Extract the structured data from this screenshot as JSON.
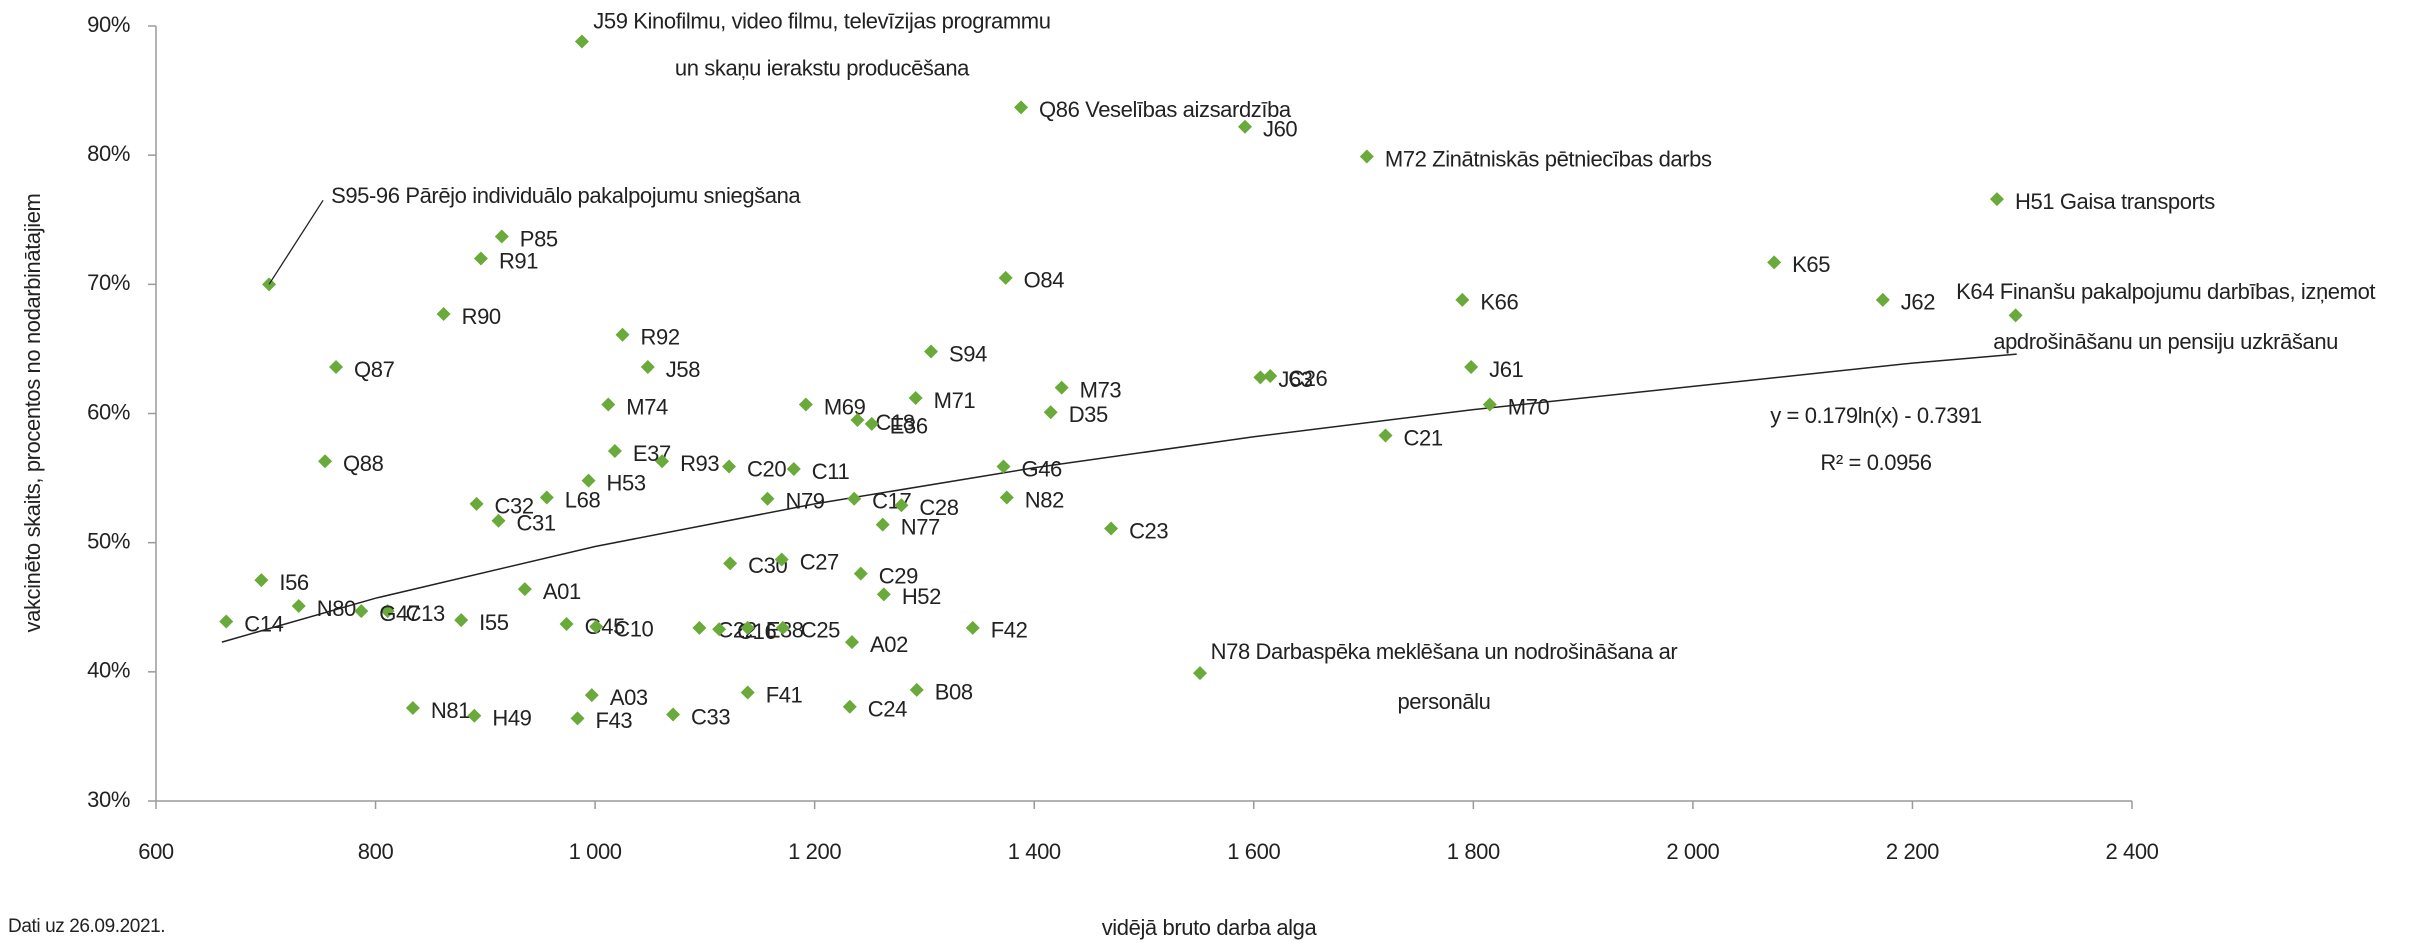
{
  "chart_data": {
    "type": "scatter",
    "x_label": "vidējā bruto darba alga",
    "y_label": "vakcinēto skaits, procentos no nodarbinātajiem",
    "note": "Dati uz 26.09.2021.",
    "color": "#6aaa3a",
    "xlim": [
      600,
      2400
    ],
    "xticks": [
      600,
      800,
      {
        "value": 1000,
        "label": "1 000"
      },
      {
        "value": 1200,
        "label": "1 200"
      },
      {
        "value": 1400,
        "label": "1 400"
      },
      {
        "value": 1600,
        "label": "1 600"
      },
      {
        "value": 1800,
        "label": "1 800"
      },
      {
        "value": 2000,
        "label": "2 000"
      },
      {
        "value": 2200,
        "label": "2 200"
      },
      {
        "value": 2400,
        "label": "2 400"
      }
    ],
    "ylim": [
      30,
      90
    ],
    "yticks": [
      {
        "value": 30,
        "label": "30%"
      },
      {
        "value": 40,
        "label": "40%"
      },
      {
        "value": 50,
        "label": "50%"
      },
      {
        "value": 60,
        "label": "60%"
      },
      {
        "value": 70,
        "label": "70%"
      },
      {
        "value": 80,
        "label": "80%"
      },
      {
        "value": 90,
        "label": "90%"
      }
    ],
    "point_labels": [
      [
        "J59 Kinofilmu, video filmu, televīzijas programmu",
        "un skaņu ierakstu producēšana"
      ],
      "Q86 Veselības aizsardzība",
      "J60",
      "M72 Zinātniskās pētniecības darbs",
      "H51 Gaisa transports",
      "S95-96 Pārējo individuālo pakalpojumu sniegšana",
      "P85",
      "R91",
      "O84",
      "K65",
      "K66",
      "J62",
      [
        "K64 Finanšu pakalpojumu darbības, izņemot",
        "apdrošināšanu un pensiju uzkrāšanu"
      ],
      "R90",
      "R92",
      "S94",
      "Q87",
      "J58",
      "J61",
      "J63",
      "C26",
      "M73",
      "M71",
      "M74",
      "M69",
      "D35",
      "M70",
      "C18",
      "E36",
      "C21",
      "E37",
      "R93",
      "Q88",
      "C20",
      "G46",
      "C11",
      "H53",
      "L68",
      "N79",
      "C17",
      "N82",
      "C32",
      "C28",
      "C31",
      "N77",
      "C23",
      "C30",
      "C27",
      "I56",
      "C29",
      "A01",
      "H52",
      "N80",
      "C13",
      "G47",
      "C14",
      "I55",
      "G45",
      "C10",
      "F42",
      "C22",
      "C16",
      "E38",
      "C25",
      "A02",
      [
        "N78 Darbaspēka meklēšana un nodrošināšana ar",
        "personālu"
      ],
      "A03",
      "F41",
      "B08",
      "N81",
      "C24",
      "H49",
      "F43",
      "C33"
    ],
    "x": [
      988,
      1388,
      1592,
      1703,
      2277,
      703,
      915,
      896,
      1374,
      2074,
      1790,
      2173,
      2294,
      862,
      1025,
      1306,
      764,
      1048,
      1798,
      1606,
      1615,
      1425,
      1292,
      1012,
      1192,
      1415,
      1815,
      1239,
      1252,
      1720,
      1018,
      1061,
      754,
      1122,
      1372,
      1181,
      994,
      956,
      1157,
      1236,
      1375,
      892,
      1279,
      912,
      1262,
      1470,
      1123,
      1170,
      696,
      1242,
      936,
      1263,
      730,
      811,
      787,
      664,
      878,
      974,
      1001,
      1344,
      1095,
      1113,
      1139,
      1171,
      1234,
      1551,
      997,
      1139,
      1293,
      834,
      1232,
      890,
      984,
      1071
    ],
    "values": [
      88.8,
      83.7,
      82.2,
      79.9,
      76.6,
      70.0,
      73.7,
      72.0,
      70.5,
      71.7,
      68.8,
      68.8,
      67.6,
      67.7,
      66.1,
      64.8,
      63.6,
      63.6,
      63.6,
      62.8,
      62.9,
      62.0,
      61.2,
      60.7,
      60.7,
      60.1,
      60.7,
      59.5,
      59.2,
      58.3,
      57.1,
      56.3,
      56.3,
      55.9,
      55.9,
      55.7,
      54.8,
      53.5,
      53.4,
      53.4,
      53.5,
      53.0,
      52.9,
      51.7,
      51.4,
      51.1,
      48.4,
      48.7,
      47.1,
      47.6,
      46.4,
      46.0,
      45.1,
      44.7,
      44.7,
      43.9,
      44.0,
      43.7,
      43.5,
      43.4,
      43.4,
      43.3,
      43.4,
      43.4,
      42.3,
      39.9,
      38.2,
      38.4,
      38.6,
      37.2,
      37.3,
      36.6,
      36.4,
      36.7
    ],
    "trendline": {
      "equation": "y = 0.179ln(x) - 0.7391",
      "r_squared": "R² = 0.0956",
      "x": [
        660,
        800,
        1000,
        1200,
        1400,
        1600,
        1800,
        2000,
        2200,
        2295
      ],
      "values": [
        42.3,
        45.7,
        49.7,
        53.0,
        55.8,
        58.2,
        60.3,
        62.1,
        63.9,
        64.6
      ]
    }
  }
}
